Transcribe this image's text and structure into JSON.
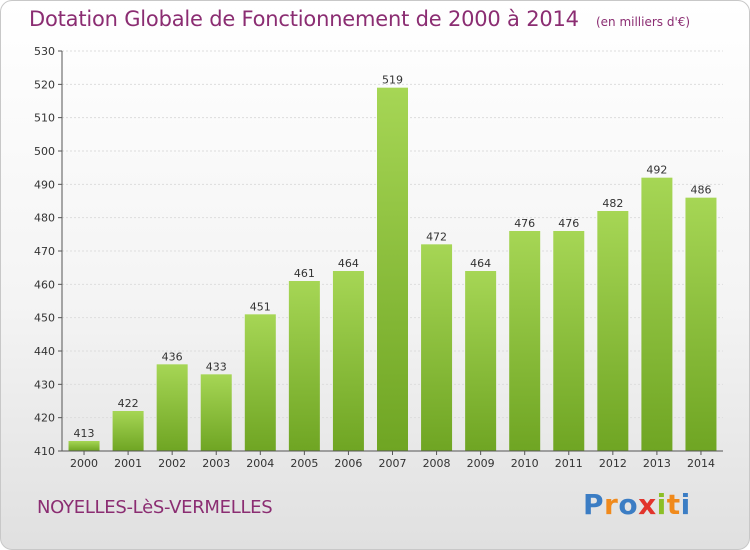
{
  "header": {
    "title": "Dotation Globale de Fonctionnement de 2000 à 2014",
    "unit": "(en milliers d'€)"
  },
  "commune": "NOYELLES-LèS-VERMELLES",
  "logo": {
    "letters": [
      "P",
      "r",
      "o",
      "x",
      "i",
      "t",
      "i"
    ],
    "colors": [
      "#3b7dc4",
      "#f08a1c",
      "#3b7dc4",
      "#e2342c",
      "#8cbf26",
      "#f08a1c",
      "#3b7dc4"
    ]
  },
  "colors": {
    "bar_light": "#a6d655",
    "bar_dark": "#6fa523",
    "grid": "#dddddd",
    "axis": "#555555"
  },
  "chart_data": {
    "type": "bar",
    "title": "Dotation Globale de Fonctionnement de 2000 à 2014",
    "subtitle": "(en milliers d'€)",
    "categories": [
      "2000",
      "2001",
      "2002",
      "2003",
      "2004",
      "2005",
      "2006",
      "2007",
      "2008",
      "2009",
      "2010",
      "2011",
      "2012",
      "2013",
      "2014"
    ],
    "values": [
      413,
      422,
      436,
      433,
      451,
      461,
      464,
      519,
      472,
      464,
      476,
      476,
      482,
      492,
      486
    ],
    "ylim": [
      410,
      530
    ],
    "yticks": [
      410,
      420,
      430,
      440,
      450,
      460,
      470,
      480,
      490,
      500,
      510,
      520,
      530
    ],
    "grid": true
  }
}
